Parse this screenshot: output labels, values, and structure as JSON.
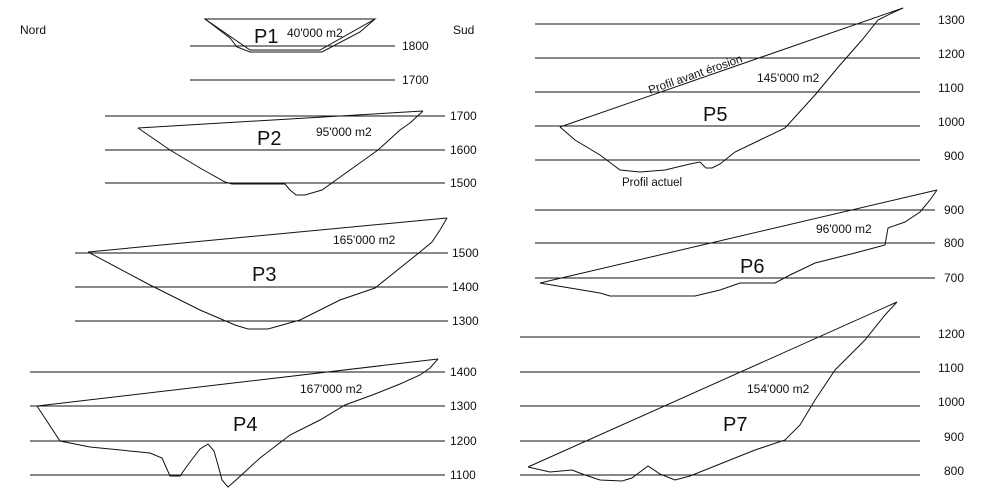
{
  "labels": {
    "north": "Nord",
    "south": "Sud",
    "profile_before": "Profil avant érosion",
    "profile_current": "Profil actuel"
  },
  "profiles": [
    {
      "id": "P1",
      "area": "40'000 m2",
      "elevations": [
        "1800",
        "1700"
      ]
    },
    {
      "id": "P2",
      "area": "95'000 m2",
      "elevations": [
        "1700",
        "1600",
        "1500"
      ]
    },
    {
      "id": "P3",
      "area": "165'000 m2",
      "elevations": [
        "1500",
        "1400",
        "1300"
      ]
    },
    {
      "id": "P4",
      "area": "167'000 m2",
      "elevations": [
        "1400",
        "1300",
        "1200",
        "1100"
      ]
    },
    {
      "id": "P5",
      "area": "145'000 m2",
      "elevations": [
        "1300",
        "1200",
        "1100",
        "1000",
        "900"
      ]
    },
    {
      "id": "P6",
      "area": "96'000 m2",
      "elevations": [
        "900",
        "800",
        "700"
      ]
    },
    {
      "id": "P7",
      "area": "154'000 m2",
      "elevations": [
        "1200",
        "1100",
        "1000",
        "900",
        "800"
      ]
    }
  ]
}
